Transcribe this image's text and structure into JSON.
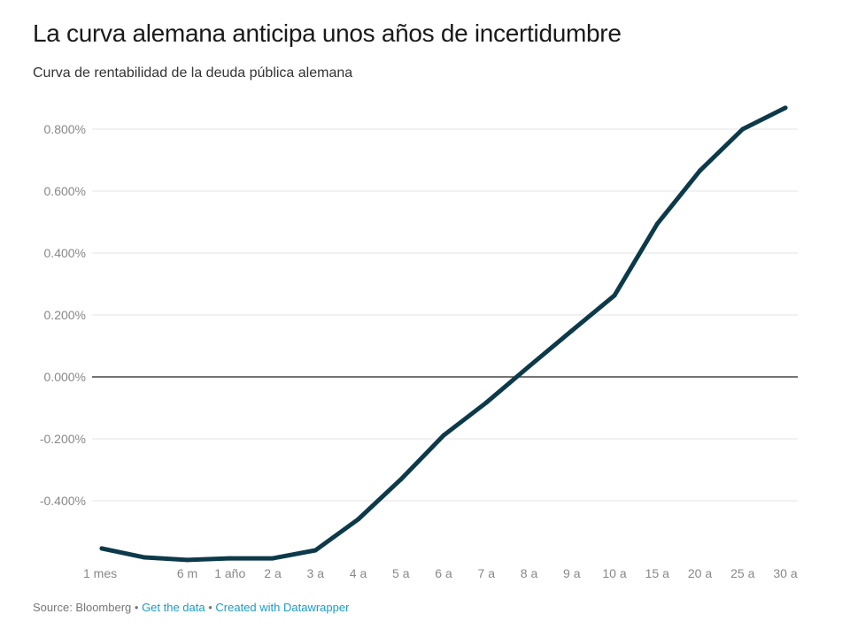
{
  "title": "La curva alemana anticipa unos años de incertidumbre",
  "subtitle": "Curva de rentabilidad de la deuda pública alemana",
  "footer": {
    "source": "Source: Bloomberg",
    "sep": " • ",
    "get_data": "Get the data",
    "created": "Created with Datawrapper"
  },
  "chart_data": {
    "type": "line",
    "categories": [
      "1 mes",
      "",
      "6 m",
      "1 año",
      "2 a",
      "3 a",
      "4 a",
      "5 a",
      "6 a",
      "7 a",
      "8 a",
      "9 a",
      "10 a",
      "15 a",
      "20 a",
      "25 a",
      "30 a"
    ],
    "values": [
      -0.554,
      -0.583,
      -0.591,
      -0.586,
      -0.586,
      -0.56,
      -0.46,
      -0.331,
      -0.189,
      -0.083,
      0.034,
      0.149,
      0.263,
      0.494,
      0.666,
      0.8,
      0.869
    ],
    "yticks": [
      0.8,
      0.6,
      0.4,
      0.2,
      0,
      -0.2,
      -0.4
    ],
    "ytick_labels": [
      "0.800%",
      "0.600%",
      "0.400%",
      "0.200%",
      "0.000%",
      "-0.200%",
      "-0.400%"
    ],
    "ylim": [
      -0.6,
      0.9
    ],
    "grid": true,
    "line_color": "#0d3a4a",
    "title": "",
    "xlabel": "",
    "ylabel": ""
  }
}
